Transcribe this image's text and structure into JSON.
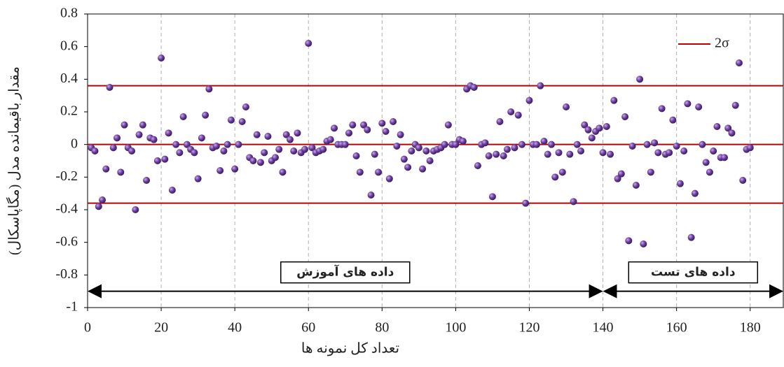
{
  "chart_data": {
    "type": "scatter",
    "xlabel": "تعداد کل نمونه ها",
    "ylabel": "مقدار باقیمانده مدل (مگاپاسکال)",
    "xlim": [
      0,
      189
    ],
    "ylim": [
      -1,
      0.8
    ],
    "xticks": [
      0,
      20,
      40,
      60,
      80,
      100,
      120,
      140,
      160,
      180
    ],
    "yticks": [
      -1,
      -0.8,
      -0.6,
      -0.4,
      -0.2,
      0,
      0.2,
      0.4,
      0.6,
      0.8
    ],
    "grid": "x",
    "color": "#6a3d9a",
    "x": [
      1,
      2,
      3,
      4,
      5,
      6,
      7,
      8,
      9,
      10,
      11,
      12,
      13,
      14,
      15,
      16,
      17,
      18,
      19,
      20,
      21,
      22,
      23,
      24,
      25,
      26,
      27,
      28,
      29,
      30,
      31,
      32,
      33,
      34,
      35,
      36,
      37,
      38,
      39,
      40,
      41,
      42,
      43,
      44,
      45,
      46,
      47,
      48,
      49,
      50,
      51,
      52,
      53,
      54,
      55,
      56,
      57,
      58,
      59,
      60,
      61,
      62,
      63,
      64,
      65,
      66,
      67,
      68,
      69,
      70,
      71,
      72,
      73,
      74,
      75,
      76,
      77,
      78,
      79,
      80,
      81,
      82,
      83,
      84,
      85,
      86,
      87,
      88,
      89,
      90,
      91,
      92,
      93,
      94,
      95,
      96,
      97,
      98,
      99,
      100,
      101,
      102,
      103,
      104,
      105,
      106,
      107,
      108,
      109,
      110,
      111,
      112,
      113,
      114,
      115,
      116,
      117,
      118,
      119,
      120,
      121,
      122,
      123,
      124,
      125,
      126,
      127,
      128,
      129,
      130,
      131,
      132,
      133,
      134,
      135,
      136,
      137,
      138,
      139,
      140,
      141,
      142,
      143,
      144,
      145,
      146,
      147,
      148,
      149,
      150,
      151,
      152,
      153,
      154,
      155,
      156,
      157,
      158,
      159,
      160,
      161,
      162,
      163,
      164,
      165,
      166,
      167,
      168,
      169,
      170,
      171,
      172,
      173,
      174,
      175,
      176,
      177,
      178,
      179,
      180
    ],
    "values": [
      -0.02,
      -0.04,
      -0.38,
      -0.34,
      -0.15,
      0.35,
      -0.02,
      0.04,
      -0.17,
      0.12,
      -0.02,
      -0.04,
      -0.4,
      0.06,
      0.12,
      -0.22,
      0.04,
      0.03,
      -0.1,
      0.53,
      -0.09,
      0.07,
      -0.28,
      0,
      -0.05,
      0.17,
      0,
      -0.03,
      -0.05,
      -0.21,
      0.04,
      0.18,
      0.34,
      -0.02,
      -0.01,
      -0.16,
      -0.04,
      0,
      0.15,
      -0.15,
      0,
      0.14,
      0.23,
      -0.08,
      -0.1,
      0.06,
      -0.11,
      -0.05,
      0.05,
      -0.1,
      -0.08,
      -0.03,
      -0.17,
      0.06,
      0.03,
      -0.04,
      0.07,
      -0.05,
      -0.03,
      0.62,
      -0.02,
      -0.05,
      -0.04,
      -0.03,
      0.02,
      0.03,
      0.1,
      0,
      0,
      0,
      0.07,
      0.12,
      -0.07,
      -0.17,
      0.12,
      0.09,
      -0.31,
      -0.06,
      -0.17,
      0.13,
      0.08,
      -0.21,
      0.14,
      -0.01,
      0.06,
      -0.09,
      -0.14,
      -0.04,
      0,
      -0.02,
      -0.15,
      -0.04,
      -0.1,
      -0.04,
      -0.03,
      -0.02,
      0,
      0.12,
      0,
      0,
      0.03,
      0.02,
      0.34,
      0.36,
      0.35,
      -0.13,
      0,
      0.01,
      -0.07,
      -0.32,
      -0.06,
      0.14,
      -0.07,
      -0.03,
      0.2,
      -0.02,
      0.18,
      0,
      -0.36,
      0.27,
      0,
      0,
      0.36,
      0.02,
      -0.06,
      0,
      -0.2,
      -0.05,
      -0.17,
      0.23,
      -0.06,
      -0.35,
      0,
      -0.04,
      0.12,
      0.09,
      0.04,
      0.08,
      0.1,
      -0.05,
      0.11,
      -0.06,
      0.27,
      -0.21,
      -0.18,
      0.17,
      -0.59,
      -0.01,
      -0.25,
      0.4,
      -0.61,
      0,
      -0.17,
      0.01,
      -0.05,
      0.22,
      -0.06,
      -0.05,
      0.15,
      -0.01,
      -0.24,
      -0.04,
      0.25,
      -0.57,
      -0.3,
      0.23,
      0,
      -0.11,
      -0.17,
      -0.04,
      0.11,
      -0.08,
      -0.08,
      0.1,
      0.07,
      0.24,
      0.5,
      -0.22,
      -0.03,
      -0.02
    ],
    "lines": {
      "name": "2σ",
      "color": "#c00000",
      "values": [
        0.36,
        0,
        -0.36
      ]
    },
    "annotations": [
      {
        "text": "داده های آموزش",
        "x": [
          0,
          140
        ],
        "y": -0.9
      },
      {
        "text": "داده های تست",
        "x": [
          140,
          189
        ],
        "y": -0.9
      }
    ],
    "legend": "upper right"
  }
}
